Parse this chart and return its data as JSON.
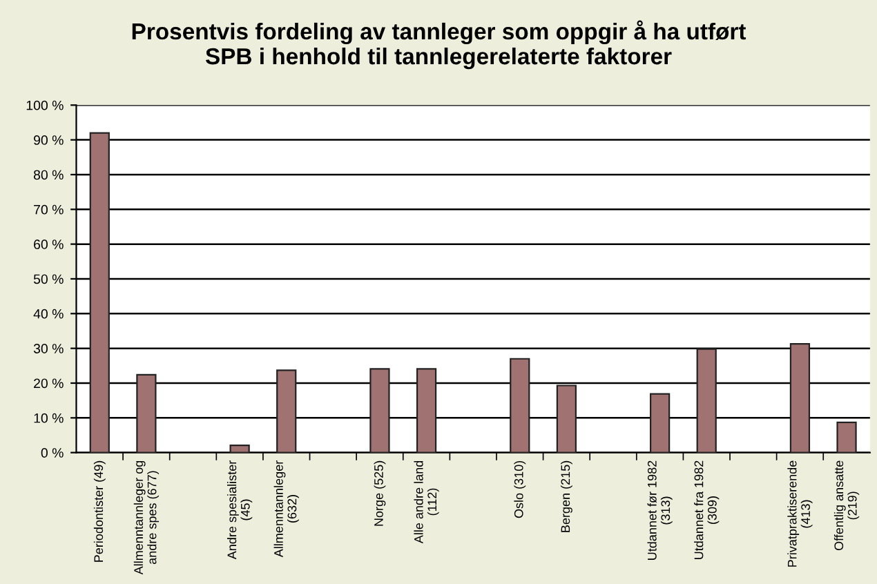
{
  "chart_data": {
    "type": "bar",
    "title": "Prosentvis fordeling av tannleger som oppgir å ha utført\nSPB i henhold til tannlegerelaterte faktorer",
    "categories": [
      "Periodontister (49)",
      "Allmenntannleger og\nandre spes (677)",
      null,
      "Andre spesialister\n(45)",
      "Allmenntannleger\n(632)",
      null,
      "Norge (525)",
      "Alle andre land\n(112)",
      null,
      "Oslo (310)",
      "Bergen (215)",
      null,
      "Utdannet før 1982\n(313)",
      "Utdannet fra 1982\n(309)",
      null,
      "Privatpraktiserende\n(413)",
      "Offentlig ansatte\n(219)"
    ],
    "values": [
      92,
      22.4,
      null,
      2.1,
      23.7,
      null,
      24.1,
      24.1,
      null,
      27.0,
      19.3,
      null,
      16.9,
      29.8,
      null,
      31.3,
      8.7
    ],
    "color": "#a07272",
    "ylim": [
      0,
      100
    ],
    "yticks": [
      {
        "value": 0,
        "label": "0 %"
      },
      {
        "value": 10,
        "label": "10 %"
      },
      {
        "value": 20,
        "label": "20 %"
      },
      {
        "value": 30,
        "label": "30 %"
      },
      {
        "value": 40,
        "label": "40 %"
      },
      {
        "value": 50,
        "label": "50 %"
      },
      {
        "value": 60,
        "label": "60 %"
      },
      {
        "value": 70,
        "label": "70 %"
      },
      {
        "value": 80,
        "label": "80 %"
      },
      {
        "value": 90,
        "label": "90 %"
      },
      {
        "value": 100,
        "label": "100 %"
      }
    ],
    "grid": "y"
  }
}
